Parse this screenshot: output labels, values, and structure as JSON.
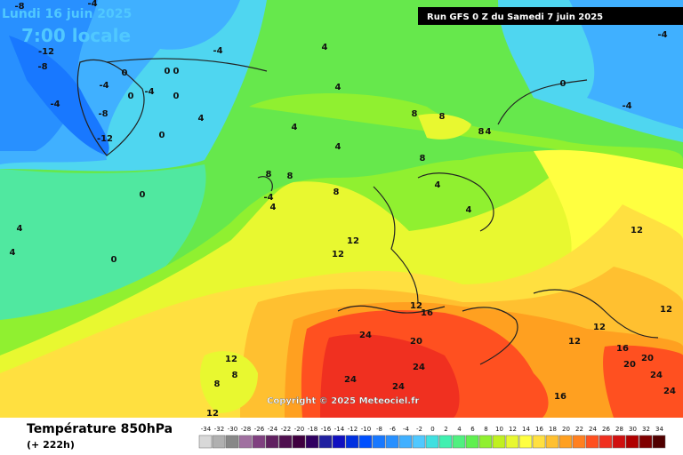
{
  "header": {
    "valid_date": "Lundi 16 juin 2025",
    "local_time": "7:00 locale",
    "run": "Run GFS 0 Z du Samedi 7 juin 2025"
  },
  "map": {
    "copyright": "Copyright © 2025 Meteociel.fr",
    "contour_labels": [
      -8,
      -4,
      -4,
      -12,
      -8,
      0,
      0,
      0,
      -4,
      0,
      -4,
      0,
      -4,
      -8,
      4,
      -12,
      0,
      0,
      0,
      4,
      4,
      4,
      4,
      4,
      4,
      8,
      8,
      8,
      4,
      8,
      8,
      8,
      -4,
      4,
      8,
      4,
      4,
      12,
      12,
      12,
      -4,
      0,
      -4,
      12,
      16,
      12,
      12,
      12,
      16,
      24,
      20,
      12,
      8,
      8,
      24,
      24,
      24,
      16,
      20,
      20,
      24,
      24,
      12
    ]
  },
  "footer": {
    "title": "Température 850hPa",
    "lead_time": "(+ 222h)"
  },
  "legend": {
    "values": [
      -34,
      -32,
      -30,
      -28,
      -26,
      -24,
      -22,
      -20,
      -18,
      -16,
      -14,
      -12,
      -10,
      -8,
      -6,
      -4,
      -2,
      0,
      2,
      4,
      6,
      8,
      10,
      12,
      14,
      16,
      18,
      20,
      22,
      24,
      26,
      28,
      30,
      32,
      34
    ],
    "colors": [
      "#d8d8d8",
      "#b0b0b0",
      "#888888",
      "#a070a0",
      "#804080",
      "#602060",
      "#501050",
      "#400040",
      "#300060",
      "#2020a0",
      "#1010c0",
      "#0030e0",
      "#0050ff",
      "#1878ff",
      "#2890ff",
      "#40b0ff",
      "#50c8ff",
      "#40e0e0",
      "#40f0b0",
      "#50f080",
      "#60f050",
      "#90f030",
      "#c0f020",
      "#e8f830",
      "#ffff40",
      "#ffe040",
      "#ffc030",
      "#ffa020",
      "#ff8020",
      "#ff5020",
      "#f03020",
      "#d01010",
      "#b00000",
      "#800000",
      "#500000"
    ]
  }
}
